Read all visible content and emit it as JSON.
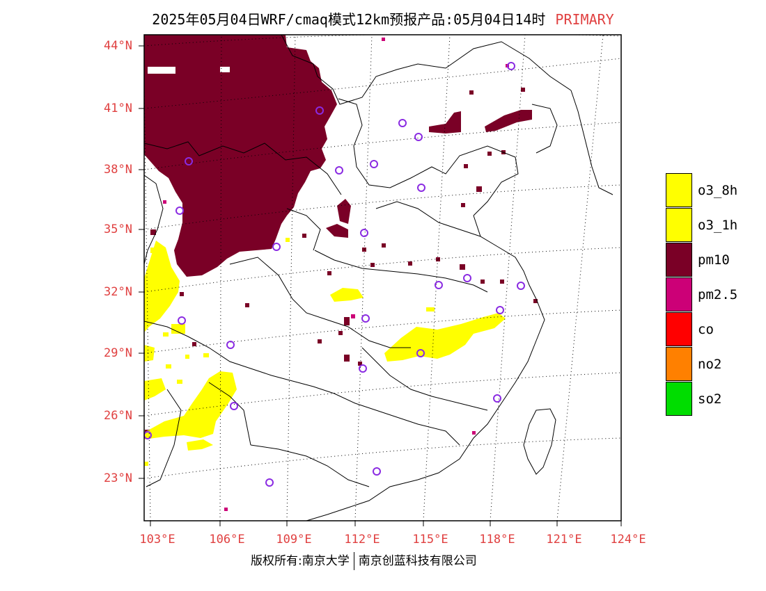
{
  "title": {
    "text": "2025年05月04日WRF/cmaq模式12km预报产品:05月04日14时",
    "tag": "PRIMARY"
  },
  "axes": {
    "lat_labels": [
      "44°N",
      "41°N",
      "38°N",
      "35°N",
      "32°N",
      "29°N",
      "26°N",
      "23°N"
    ],
    "lon_labels": [
      "103°E",
      "106°E",
      "109°E",
      "112°E",
      "115°E",
      "118°E",
      "121°E",
      "124°E"
    ]
  },
  "legend": [
    {
      "label": "o3_8h",
      "color": "#ffff00"
    },
    {
      "label": "o3_1h",
      "color": "#ffff00"
    },
    {
      "label": "pm10",
      "color": "#7a0026"
    },
    {
      "label": "pm2.5",
      "color": "#cc0077"
    },
    {
      "label": "co",
      "color": "#ff0000"
    },
    {
      "label": "no2",
      "color": "#ff8000"
    },
    {
      "label": "so2",
      "color": "#00dd00"
    }
  ],
  "colors": {
    "label_red": "#e04040",
    "station_marker": "#8a2be2"
  },
  "footer": {
    "left": "版权所有:南京大学",
    "right": "南京创蓝科技有限公司"
  }
}
